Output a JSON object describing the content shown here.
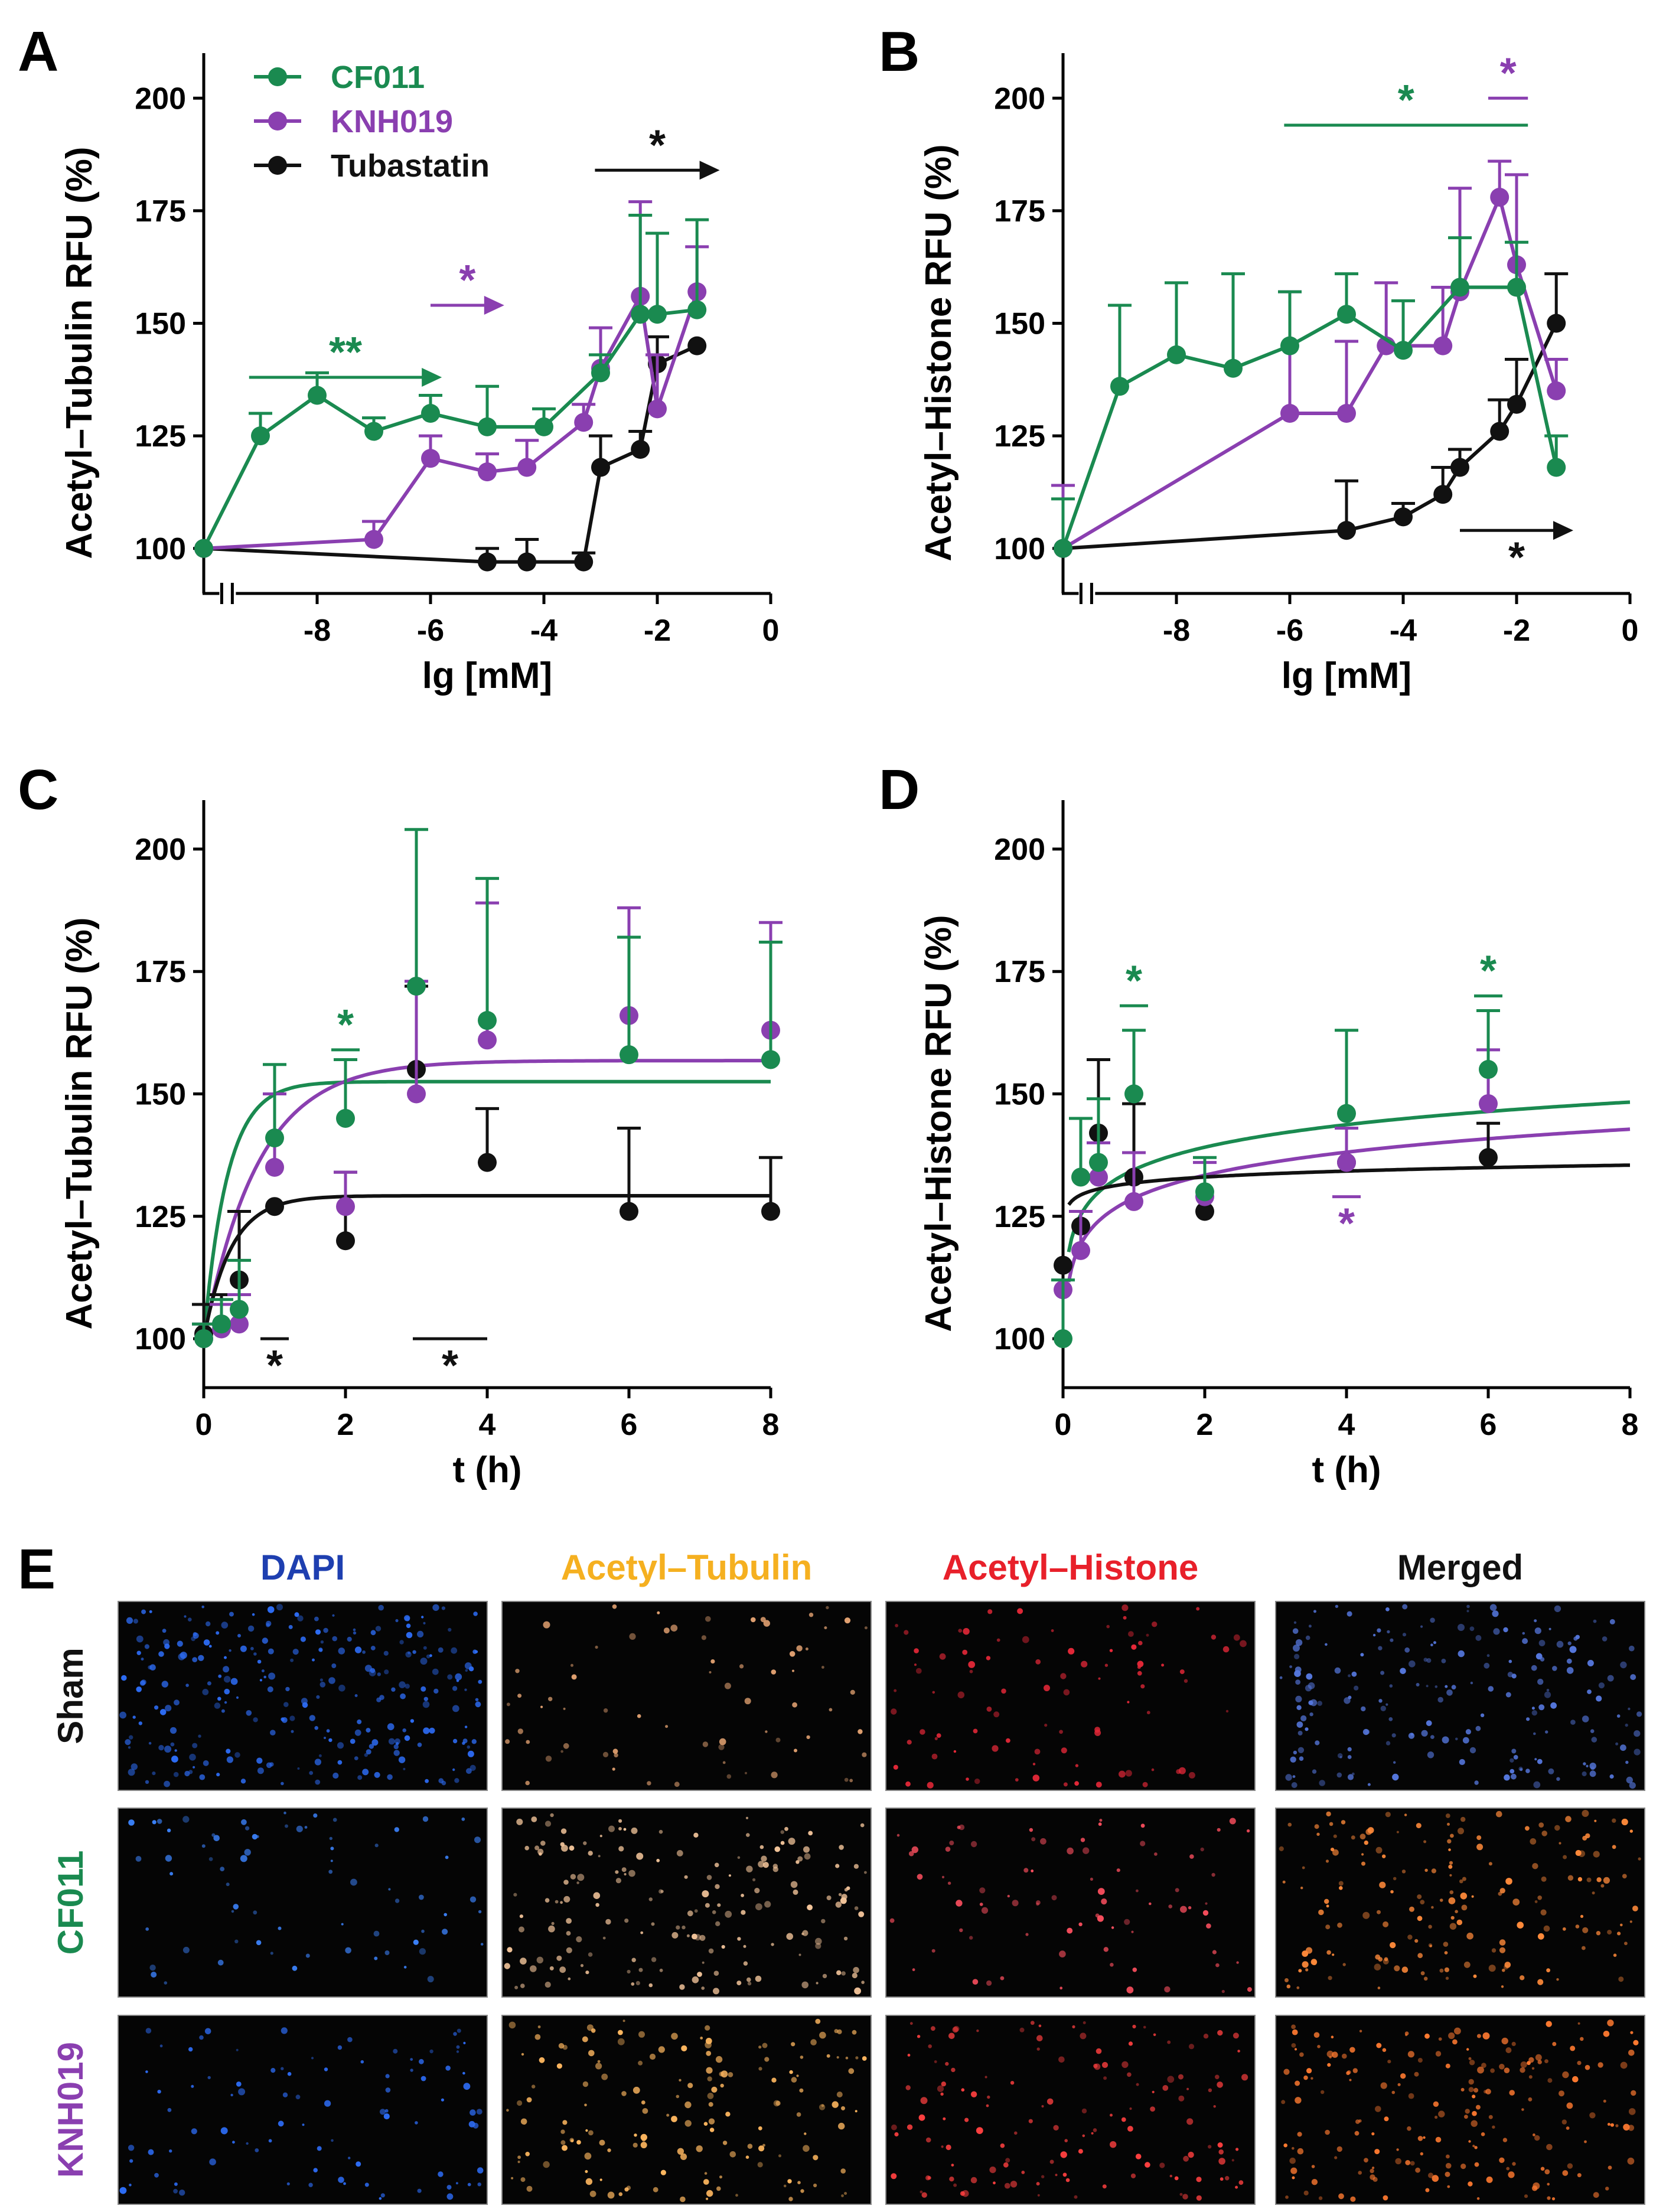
{
  "colors": {
    "CF011": "#1a8a50",
    "KNH019": "#8a3fb0",
    "Tubastatin": "#111111",
    "dapi": "#1e3fb0",
    "tubulin": "#f5b020",
    "histone": "#e8202a",
    "merged": "#111111"
  },
  "legend": [
    {
      "label": "CF011",
      "color": "#1a8a50"
    },
    {
      "label": "KNH019",
      "color": "#8a3fb0"
    },
    {
      "label": "Tubastatin",
      "color": "#111111"
    }
  ],
  "chart_data": [
    {
      "panel": "A",
      "type": "line",
      "xlabel": "lg [mM]",
      "ylabel": "Acetyl–Tubulin RFU (%)",
      "xlim": [
        -10,
        0
      ],
      "ylim": [
        90,
        210
      ],
      "xticks": [
        -8,
        -6,
        -4,
        -2,
        0
      ],
      "xtick_labels": [
        "-8",
        "-6",
        "-4",
        "-2",
        "0"
      ],
      "yticks": [
        100,
        125,
        150,
        175,
        200
      ],
      "ytick_labels": [
        "100",
        "125",
        "150",
        "175",
        "200"
      ],
      "axis_break": true,
      "series": [
        {
          "name": "CF011",
          "x": [
            -10,
            -9,
            -8,
            -7,
            -6,
            -5,
            -4,
            -3,
            -2.3,
            -2,
            -1.3
          ],
          "y": [
            100,
            125,
            134,
            126,
            130,
            127,
            127,
            139,
            152,
            152,
            153
          ],
          "err": [
            0,
            5,
            5,
            3,
            4,
            9,
            4,
            4,
            22,
            18,
            20
          ]
        },
        {
          "name": "KNH019",
          "x": [
            -10,
            -7,
            -6,
            -5,
            -4.3,
            -3.3,
            -3,
            -2.3,
            -2,
            -1.3
          ],
          "y": [
            100,
            102,
            120,
            117,
            118,
            128,
            140,
            156,
            131,
            157
          ],
          "err": [
            0,
            4,
            5,
            4,
            6,
            4,
            9,
            21,
            12,
            10
          ]
        },
        {
          "name": "Tubastatin",
          "x": [
            -10,
            -5,
            -4.3,
            -3.3,
            -3,
            -2.3,
            -2,
            -1.3
          ],
          "y": [
            100,
            97,
            97,
            97,
            118,
            122,
            141,
            145
          ],
          "err": [
            0,
            3,
            5,
            2,
            7,
            4,
            6,
            0
          ]
        }
      ],
      "annotations": [
        {
          "text": "**",
          "color": "#1a8a50",
          "x1": -9.2,
          "x2": -5.8,
          "y": 138,
          "arrow": true
        },
        {
          "text": "*",
          "color": "#8a3fb0",
          "x1": -6,
          "x2": -4.7,
          "y": 154,
          "arrow": true
        },
        {
          "text": "*",
          "color": "#111111",
          "x1": -3.1,
          "x2": -0.9,
          "y": 184,
          "arrow": true
        }
      ]
    },
    {
      "panel": "B",
      "type": "line",
      "xlabel": "lg [mM]",
      "ylabel": "Acetyl–Histone RFU (%)",
      "xlim": [
        -10,
        0
      ],
      "ylim": [
        90,
        210
      ],
      "xticks": [
        -8,
        -6,
        -4,
        -2,
        0
      ],
      "xtick_labels": [
        "-8",
        "-6",
        "-4",
        "-2",
        "0"
      ],
      "yticks": [
        100,
        125,
        150,
        175,
        200
      ],
      "ytick_labels": [
        "100",
        "125",
        "150",
        "175",
        "200"
      ],
      "axis_break": true,
      "series": [
        {
          "name": "CF011",
          "x": [
            -10,
            -9,
            -8,
            -7,
            -6,
            -5,
            -4,
            -3,
            -2,
            -1.3
          ],
          "y": [
            100,
            136,
            143,
            140,
            145,
            152,
            144,
            158,
            158,
            118
          ],
          "err": [
            11,
            18,
            16,
            21,
            12,
            9,
            11,
            11,
            10,
            7
          ]
        },
        {
          "name": "KNH019",
          "x": [
            -10,
            -6,
            -5,
            -4.3,
            -3.3,
            -3,
            -2.3,
            -2,
            -1.3
          ],
          "y": [
            100,
            130,
            130,
            145,
            145,
            157,
            178,
            163,
            135
          ],
          "err": [
            14,
            27,
            16,
            14,
            13,
            23,
            8,
            20,
            7
          ]
        },
        {
          "name": "Tubastatin",
          "x": [
            -10,
            -5,
            -4,
            -3.3,
            -3,
            -2.3,
            -2,
            -1.3
          ],
          "y": [
            100,
            104,
            107,
            112,
            118,
            126,
            132,
            150
          ],
          "err": [
            0,
            11,
            3,
            6,
            4,
            7,
            10,
            11
          ]
        }
      ],
      "annotations": [
        {
          "text": "*",
          "color": "#1a8a50",
          "x1": -6.1,
          "x2": -1.8,
          "y": 194,
          "arrow": false
        },
        {
          "text": "*",
          "color": "#8a3fb0",
          "x1": -2.5,
          "x2": -1.8,
          "y": 200,
          "arrow": false
        },
        {
          "text": "*",
          "color": "#111111",
          "x1": -3,
          "x2": -1,
          "y": 104,
          "arrow": true,
          "below": true
        }
      ]
    },
    {
      "panel": "C",
      "type": "line",
      "xlabel": "t (h)",
      "ylabel": "Acetyl–Tubulin RFU (%)",
      "xlim": [
        0,
        8
      ],
      "ylim": [
        90,
        210
      ],
      "xticks": [
        0,
        2,
        4,
        6,
        8
      ],
      "xtick_labels": [
        "0",
        "2",
        "4",
        "6",
        "8"
      ],
      "yticks": [
        100,
        125,
        150,
        175,
        200
      ],
      "ytick_labels": [
        "100",
        "125",
        "150",
        "175",
        "200"
      ],
      "series": [
        {
          "name": "CF011",
          "x": [
            0,
            0.25,
            0.5,
            1,
            2,
            3,
            4,
            6,
            8
          ],
          "y": [
            100,
            103,
            106,
            141,
            145,
            172,
            165,
            158,
            157
          ],
          "err": [
            3,
            5,
            10,
            15,
            12,
            32,
            29,
            24,
            24
          ]
        },
        {
          "name": "KNH019",
          "x": [
            0,
            0.25,
            0.5,
            1,
            2,
            3,
            4,
            6,
            8
          ],
          "y": [
            100,
            102,
            103,
            135,
            127,
            150,
            161,
            166,
            163
          ],
          "err": [
            3,
            5,
            6,
            15,
            7,
            23,
            28,
            22,
            22
          ]
        },
        {
          "name": "Tubastatin",
          "x": [
            0,
            0.25,
            0.5,
            1,
            2,
            3,
            4,
            6,
            8
          ],
          "y": [
            101,
            103,
            112,
            127,
            120,
            155,
            136,
            126,
            126
          ],
          "err": [
            6,
            6,
            14,
            0,
            14,
            17,
            11,
            17,
            11
          ]
        }
      ],
      "fits": [
        {
          "name": "CF011",
          "plateau": 152.5,
          "k": 3.0
        },
        {
          "name": "KNH019",
          "plateau": 156.8,
          "k": 1.3
        },
        {
          "name": "Tubastatin",
          "plateau": 129.2,
          "k": 2.6
        }
      ],
      "annotations": [
        {
          "text": "*",
          "color": "#1a8a50",
          "x1": 1.8,
          "x2": 2.2,
          "y": 159,
          "above_line": true
        },
        {
          "text": "*",
          "color": "#111111",
          "x1": 0.8,
          "x2": 1.2,
          "y": 100,
          "below": true
        },
        {
          "text": "*",
          "color": "#111111",
          "x1": 2.95,
          "x2": 4.0,
          "y": 100,
          "below": true
        }
      ]
    },
    {
      "panel": "D",
      "type": "line",
      "xlabel": "t (h)",
      "ylabel": "Acetyl–Histone RFU (%)",
      "xlim": [
        0,
        8
      ],
      "ylim": [
        90,
        210
      ],
      "xticks": [
        0,
        2,
        4,
        6,
        8
      ],
      "xtick_labels": [
        "0",
        "2",
        "4",
        "6",
        "8"
      ],
      "yticks": [
        100,
        125,
        150,
        175,
        200
      ],
      "ytick_labels": [
        "100",
        "125",
        "150",
        "175",
        "200"
      ],
      "series": [
        {
          "name": "CF011",
          "x": [
            0,
            0.25,
            0.5,
            1,
            2,
            4,
            6
          ],
          "y": [
            100,
            133,
            136,
            150,
            130,
            146,
            155
          ],
          "err": [
            12,
            12,
            13,
            13,
            7,
            17,
            12
          ]
        },
        {
          "name": "KNH019",
          "x": [
            0,
            0.25,
            0.5,
            1,
            2,
            4,
            6
          ],
          "y": [
            110,
            118,
            133,
            128,
            129,
            136,
            148
          ],
          "err": [
            0,
            8,
            7,
            10,
            7,
            7,
            11
          ]
        },
        {
          "name": "Tubastatin",
          "x": [
            0,
            0.25,
            0.5,
            1,
            2,
            4,
            6
          ],
          "y": [
            115,
            123,
            142,
            133,
            126,
            136,
            137
          ],
          "err": [
            0,
            0,
            15,
            15,
            0,
            0,
            7
          ]
        }
      ],
      "fits": [
        {
          "name": "CF011",
          "a": 134.5,
          "b": 15.3
        },
        {
          "name": "KNH019",
          "a": 128.7,
          "b": 15.6
        },
        {
          "name": "Tubastatin",
          "a": 131.8,
          "b": 4.04
        }
      ],
      "annotations": [
        {
          "text": "*",
          "color": "#1a8a50",
          "x1": 0.8,
          "x2": 1.2,
          "y": 168,
          "above_line": true
        },
        {
          "text": "*",
          "color": "#8a3fb0",
          "x1": 3.8,
          "x2": 4.2,
          "y": 129,
          "below_line": true
        },
        {
          "text": "*",
          "color": "#1a8a50",
          "x1": 5.8,
          "x2": 6.2,
          "y": 170,
          "above_line": true
        }
      ]
    }
  ],
  "microscopy": {
    "letter": "E",
    "columns": [
      {
        "label": "DAPI",
        "color": "#1e3fb0"
      },
      {
        "label": "Acetyl–Tubulin",
        "color": "#f5b020"
      },
      {
        "label": "Acetyl–Histone",
        "color": "#e8202a"
      },
      {
        "label": "Merged",
        "color": "#111111"
      }
    ],
    "rows": [
      {
        "label": "Sham",
        "color": "#111111"
      },
      {
        "label": "CF011",
        "color": "#1a8a50"
      },
      {
        "label": "KNH019",
        "color": "#8a3fb0"
      }
    ]
  }
}
